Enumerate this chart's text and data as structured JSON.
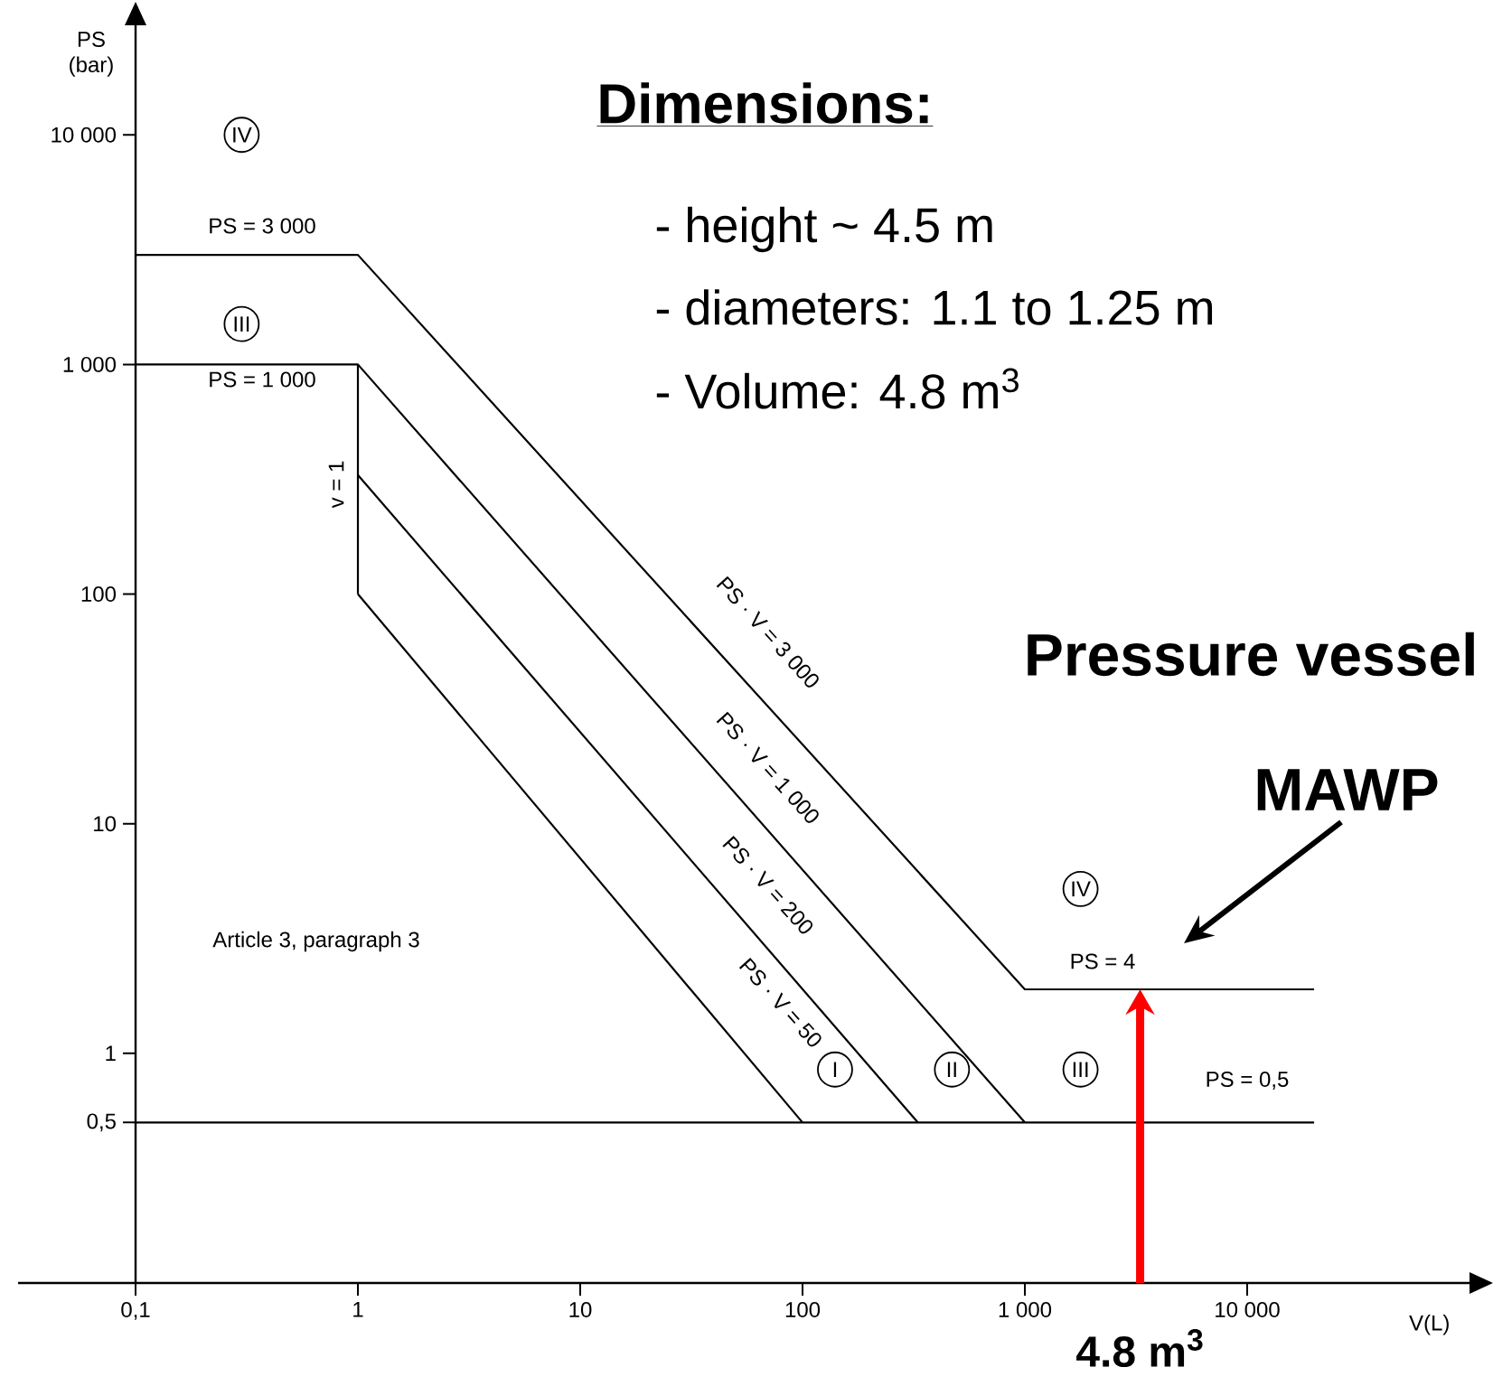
{
  "chart_data": {
    "type": "line",
    "log": "xy",
    "marker": "none",
    "line_style": "solid",
    "xlabel": "V(L)",
    "ylabel": "PS (bar)",
    "xlim": [
      0.1,
      100000
    ],
    "ylim": [
      0.1,
      30000
    ],
    "xticks": [
      {
        "value": 0.1,
        "label": "0,1"
      },
      1,
      10,
      100,
      {
        "value": 1000,
        "label": "1 000"
      },
      {
        "value": 10000,
        "label": "10 000"
      }
    ],
    "yticks": [
      {
        "value": 0.5,
        "label": "0,5"
      },
      1,
      10,
      100,
      {
        "value": 1000,
        "label": "1 000"
      },
      {
        "value": 10000,
        "label": "10 000"
      }
    ],
    "series": [
      {
        "color": "#000000",
        "x": [
          0.1,
          1,
          1000,
          20000
        ],
        "values": [
          3000,
          3000,
          1.9,
          1.9
        ]
      },
      {
        "color": "#000000",
        "x": [
          0.1,
          1,
          1000
        ],
        "values": [
          1000,
          1000,
          0.5
        ]
      },
      {
        "color": "#000000",
        "x": [
          1,
          1
        ],
        "values": [
          1000,
          100
        ]
      },
      {
        "color": "#000000",
        "x": [
          1,
          330
        ],
        "values": [
          330,
          0.5
        ]
      },
      {
        "color": "#000000",
        "x": [
          1,
          100
        ],
        "values": [
          100,
          0.5
        ]
      },
      {
        "color": "#000000",
        "x": [
          0.1,
          20000
        ],
        "values": [
          0.5,
          0.5
        ]
      }
    ],
    "annotations": [
      "Dimensions:",
      "- height ~ 4.5 m",
      "- diameters: 1.1 to 1.25 m",
      "- Volume: 4.8 m$^{3}$",
      "Pressure vessel",
      "MAWP",
      {
        "text": "4.8 m$^{3}$",
        "x": 3300,
        "y": 1.9
      },
      "Article 3, paragraph 3",
      {
        "text": "IV",
        "x": 0.3,
        "y": 10000
      },
      "PS = 3 000",
      {
        "text": "III",
        "x": 0.3,
        "y": 1500
      },
      "PS = 1 000",
      "v = 1",
      "PS · V = 3 000",
      "PS · V = 1 000",
      "PS · V = 200",
      "PS · V = 50",
      {
        "text": "I",
        "x": 140,
        "y": 0.85
      },
      {
        "text": "II",
        "x": 470,
        "y": 0.85
      },
      {
        "text": "III",
        "x": 1780,
        "y": 0.85
      },
      {
        "text": "IV",
        "x": 1780,
        "y": 5.2
      },
      "PS = 4",
      "PS = 0,5"
    ]
  }
}
